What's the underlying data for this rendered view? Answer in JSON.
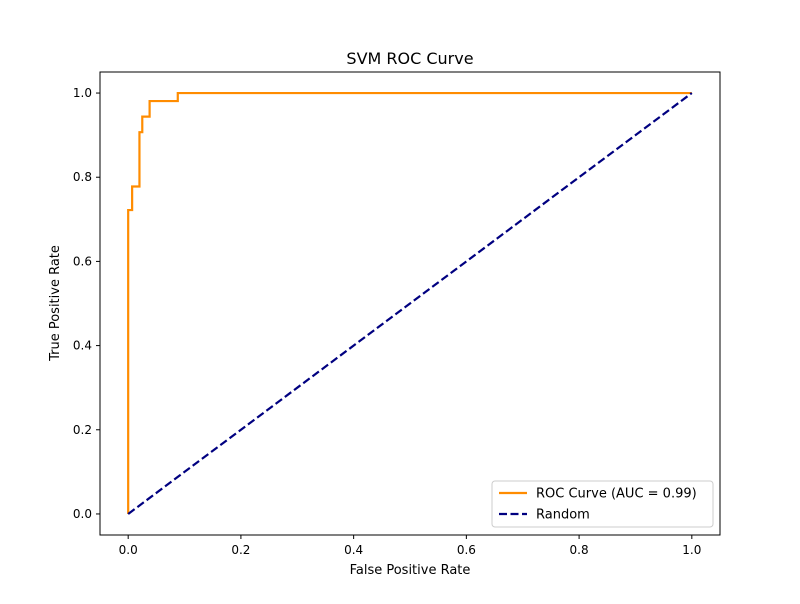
{
  "chart_data": {
    "type": "line",
    "title": "SVM ROC Curve",
    "xlabel": "False Positive Rate",
    "ylabel": "True Positive Rate",
    "xlim": [
      -0.05,
      1.05
    ],
    "ylim": [
      -0.05,
      1.05
    ],
    "xticks": [
      0.0,
      0.2,
      0.4,
      0.6,
      0.8,
      1.0
    ],
    "yticks": [
      0.0,
      0.2,
      0.4,
      0.6,
      0.8,
      1.0
    ],
    "xtick_labels": [
      "0.0",
      "0.2",
      "0.4",
      "0.6",
      "0.8",
      "1.0"
    ],
    "ytick_labels": [
      "0.0",
      "0.2",
      "0.4",
      "0.6",
      "0.8",
      "1.0"
    ],
    "grid": false,
    "legend_position": "lower-right",
    "series": [
      {
        "name": "ROC Curve (AUC = 0.99)",
        "color": "#ff8c00",
        "style": "solid",
        "x": [
          0.0,
          0.0,
          0.007,
          0.007,
          0.02,
          0.02,
          0.025,
          0.025,
          0.038,
          0.038,
          0.088,
          0.088,
          1.0
        ],
        "y": [
          0.0,
          0.722,
          0.722,
          0.778,
          0.778,
          0.907,
          0.907,
          0.944,
          0.944,
          0.981,
          0.981,
          1.0,
          1.0
        ]
      },
      {
        "name": "Random",
        "color": "#000080",
        "style": "dashed",
        "x": [
          0.0,
          1.0
        ],
        "y": [
          0.0,
          1.0
        ]
      }
    ]
  }
}
